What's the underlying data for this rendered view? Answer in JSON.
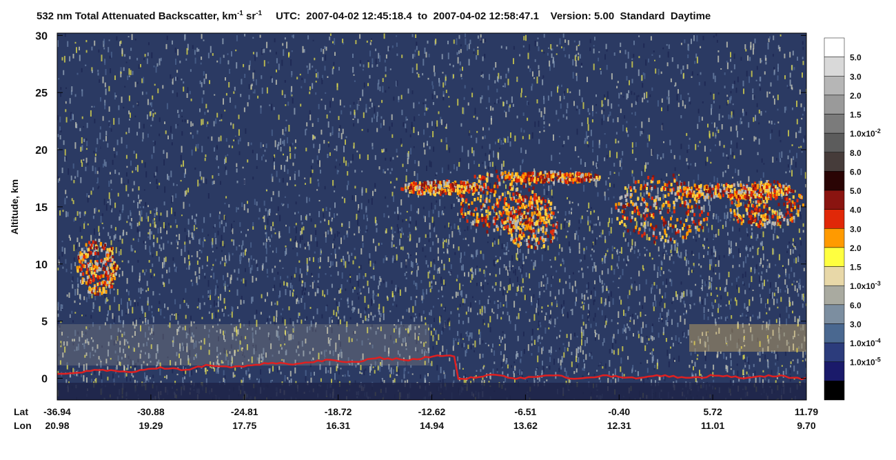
{
  "chart_data": {
    "type": "curtain",
    "title": {
      "text": "532 nm Total Attenuated Backscatter, km",
      "sup1": "-1",
      "mid": " sr",
      "sup2": "-1",
      "rest": "UTC:  2007-04-02 12:45:18.4  to  2007-04-02 12:58:47.1    Version: 5.00  Standard  Daytime"
    },
    "y_label": "Altitude, km",
    "ylim": [
      -1.9,
      30.2
    ],
    "yticks": [
      0,
      5,
      10,
      15,
      20,
      25,
      30
    ],
    "lat_header": "Lat",
    "lon_header": "Lon",
    "lat_labels": [
      "-36.94",
      "-30.88",
      "-24.81",
      "-18.72",
      "-12.62",
      "-6.51",
      "-0.40",
      "5.72",
      "11.79"
    ],
    "lon_labels": [
      "20.98",
      "19.29",
      "17.75",
      "16.31",
      "14.94",
      "13.62",
      "12.31",
      "11.01",
      "9.70"
    ],
    "colorbar": {
      "colors": [
        "#ffffff",
        "#d9d9d9",
        "#b6b6b6",
        "#9a9a9a",
        "#7b7b7b",
        "#5c5c5c",
        "#463c3a",
        "#2a0404",
        "#8a1410",
        "#e02808",
        "#ff9a00",
        "#ffff40",
        "#e8d8a8",
        "#a9aaa0",
        "#7c8ea0",
        "#4a6890",
        "#2c3c7c",
        "#1a1a6a",
        "#000000"
      ],
      "labels": [
        {
          "text": "5.0"
        },
        {
          "text": "3.0"
        },
        {
          "text": "2.0"
        },
        {
          "text": "1.5"
        },
        {
          "text": "1.0x10",
          "sup": "-2"
        },
        {
          "text": "8.0"
        },
        {
          "text": "6.0"
        },
        {
          "text": "5.0"
        },
        {
          "text": "4.0"
        },
        {
          "text": "3.0"
        },
        {
          "text": "2.0"
        },
        {
          "text": "1.5"
        },
        {
          "text": "1.0x10",
          "sup": "-3"
        },
        {
          "text": "6.0"
        },
        {
          "text": "3.0"
        },
        {
          "text": "1.0x10",
          "sup": "-4"
        },
        {
          "text": "1.0x10",
          "sup": "-5"
        }
      ]
    }
  }
}
